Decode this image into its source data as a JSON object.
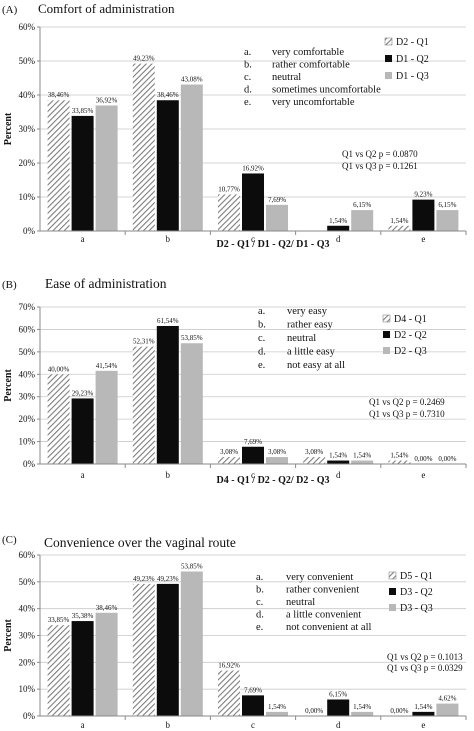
{
  "panels": [
    {
      "label": "(A)",
      "title": "Comfort of administration",
      "xlabel": "D2 - Q1 / D1 - Q2/ D1 - Q3",
      "ylabel": "Percent",
      "ticks": [
        "0%",
        "10%",
        "20%",
        "30%",
        "40%",
        "50%",
        "60%"
      ],
      "pvalues": [
        "Q1 vs Q2 p = 0.0870",
        "Q1 vs Q3 p = 0.1261"
      ],
      "options": [
        {
          "letter": "a.",
          "text": "very comfortable"
        },
        {
          "letter": "b.",
          "text": "rather comfortable"
        },
        {
          "letter": "c.",
          "text": "neutral"
        },
        {
          "letter": "d.",
          "text": "sometimes uncomfortable"
        },
        {
          "letter": "e.",
          "text": "very uncomfortable"
        }
      ]
    },
    {
      "label": "(B)",
      "title": "Ease of administration",
      "xlabel": "D4 - Q1 / D2 - Q2/ D2 - Q3",
      "ylabel": "Percent",
      "ticks": [
        "0%",
        "10%",
        "20%",
        "30%",
        "40%",
        "50%",
        "60%",
        "70%"
      ],
      "pvalues": [
        "Q1 vs Q2 p = 0.2469",
        "Q1 vs Q3 p = 0.7310"
      ],
      "options": [
        {
          "letter": "a.",
          "text": "very easy"
        },
        {
          "letter": "b.",
          "text": "rather easy"
        },
        {
          "letter": "c.",
          "text": "neutral"
        },
        {
          "letter": "d.",
          "text": "a little easy"
        },
        {
          "letter": "e.",
          "text": "not easy at all"
        }
      ]
    },
    {
      "label": "(C)",
      "title": "Convenience over the vaginal  route",
      "xlabel": "",
      "ylabel": "Percent",
      "ticks": [
        "0%",
        "10%",
        "20%",
        "30%",
        "40%",
        "50%",
        "60%"
      ],
      "pvalues": [
        "Q1 vs Q2 p = 0.1013",
        "Q1 vs Q3 p = 0.0329"
      ],
      "options": [
        {
          "letter": "a.",
          "text": "very convenient"
        },
        {
          "letter": "b.",
          "text": "rather convenient"
        },
        {
          "letter": "c.",
          "text": "neutral"
        },
        {
          "letter": "d.",
          "text": "a little convenient"
        },
        {
          "letter": "e.",
          "text": "not convenient at all"
        }
      ]
    }
  ],
  "chart_data": [
    {
      "type": "bar",
      "title": "Comfort of administration",
      "xlabel": "D2 - Q1 / D1 - Q2/ D1 - Q3",
      "ylabel": "Percent",
      "ylim": [
        0,
        60
      ],
      "categories": [
        "a",
        "b",
        "c",
        "d",
        "e"
      ],
      "series": [
        {
          "name": "D2 - Q1",
          "values": [
            38.46,
            49.23,
            10.77,
            0,
            1.54
          ],
          "labels": [
            "38,46%",
            "49,23%",
            "10,77%",
            "",
            "1,54%"
          ]
        },
        {
          "name": "D1 - Q2",
          "values": [
            33.85,
            38.46,
            16.92,
            1.54,
            9.23
          ],
          "labels": [
            "33,85%",
            "38,46%",
            "16,92%",
            "1,54%",
            "9,23%"
          ]
        },
        {
          "name": "D1 - Q3",
          "values": [
            36.92,
            43.08,
            7.69,
            6.15,
            6.15
          ],
          "labels": [
            "36,92%",
            "43,08%",
            "7,69%",
            "6,15%",
            "6,15%"
          ]
        }
      ],
      "legend": "top-right",
      "grid": true
    },
    {
      "type": "bar",
      "title": "Ease of administration",
      "xlabel": "D4 - Q1 / D2 - Q2/ D2 - Q3",
      "ylabel": "Percent",
      "ylim": [
        0,
        70
      ],
      "categories": [
        "a",
        "b",
        "c",
        "d",
        "e"
      ],
      "series": [
        {
          "name": "D4 - Q1",
          "values": [
            40.0,
            52.31,
            3.08,
            3.08,
            1.54
          ],
          "labels": [
            "40,00%",
            "52,31%",
            "3,08%",
            "3,08%",
            "1,54%"
          ]
        },
        {
          "name": "D2 - Q2",
          "values": [
            29.23,
            61.54,
            7.69,
            1.54,
            0.0
          ],
          "labels": [
            "29,23%",
            "61,54%",
            "7,69%",
            "1,54%",
            "0,00%"
          ]
        },
        {
          "name": "D2 - Q3",
          "values": [
            41.54,
            53.85,
            3.08,
            1.54,
            0.0
          ],
          "labels": [
            "41,54%",
            "53,85%",
            "3,08%",
            "1,54%",
            "0,00%"
          ]
        }
      ],
      "legend": "top-right",
      "grid": true
    },
    {
      "type": "bar",
      "title": "Convenience over the vaginal  route",
      "xlabel": "",
      "ylabel": "Percent",
      "ylim": [
        0,
        60
      ],
      "categories": [
        "a",
        "b",
        "c",
        "d",
        "e"
      ],
      "series": [
        {
          "name": "D5 - Q1",
          "values": [
            33.85,
            49.23,
            16.92,
            0.0,
            0.0
          ],
          "labels": [
            "33,85%",
            "49,23%",
            "16,92%",
            "0,00%",
            "0,00%"
          ]
        },
        {
          "name": "D3 - Q2",
          "values": [
            35.38,
            49.23,
            7.69,
            6.15,
            1.54
          ],
          "labels": [
            "35,38%",
            "49,23%",
            "7,69%",
            "6,15%",
            "1,54%"
          ]
        },
        {
          "name": "D3 - Q3",
          "values": [
            38.46,
            53.85,
            1.54,
            1.54,
            4.62
          ],
          "labels": [
            "38,46%",
            "53,85%",
            "1,54%",
            "1,54%",
            "4,62%"
          ]
        }
      ],
      "legend": "top-right",
      "grid": true
    }
  ]
}
